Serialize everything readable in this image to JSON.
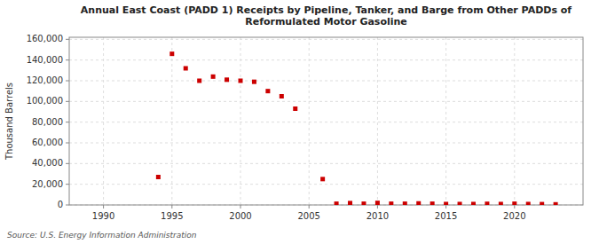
{
  "chart_data": {
    "type": "scatter",
    "title": "Annual East Coast (PADD 1) Receipts by Pipeline, Tanker, and Barge from Other PADDs of\nReformulated Motor Gasoline",
    "ylabel": "Thousand Barrels",
    "source": "Source: U.S. Energy Information Administration",
    "color": "#cc0000",
    "marker": "square",
    "grid": true,
    "x": [
      1994,
      1995,
      1996,
      1997,
      1998,
      1999,
      2000,
      2001,
      2002,
      2003,
      2004,
      2006,
      2007,
      2008,
      2009,
      2010,
      2011,
      2012,
      2013,
      2014,
      2015,
      2016,
      2017,
      2018,
      2019,
      2020,
      2021,
      2022,
      2023
    ],
    "values": [
      27000,
      146000,
      132000,
      120000,
      124000,
      121000,
      120000,
      119000,
      110000,
      105000,
      93000,
      25000,
      1200,
      1800,
      1200,
      2000,
      1200,
      1200,
      1500,
      1200,
      900,
      900,
      900,
      1100,
      900,
      1200,
      900,
      800,
      600
    ],
    "xlim": [
      1987.5,
      2025
    ],
    "ylim": [
      0,
      162000
    ],
    "xticks": [
      1990,
      1995,
      2000,
      2005,
      2010,
      2015,
      2020
    ],
    "yticks": [
      0,
      {
        "value": 20000,
        "label": "20,000"
      },
      {
        "value": 40000,
        "label": "40,000"
      },
      {
        "value": 60000,
        "label": "60,000"
      },
      {
        "value": 80000,
        "label": "80,000"
      },
      {
        "value": 100000,
        "label": "100,000"
      },
      {
        "value": 120000,
        "label": "120,000"
      },
      {
        "value": 140000,
        "label": "140,000"
      },
      {
        "value": 160000,
        "label": "160,000"
      }
    ]
  }
}
